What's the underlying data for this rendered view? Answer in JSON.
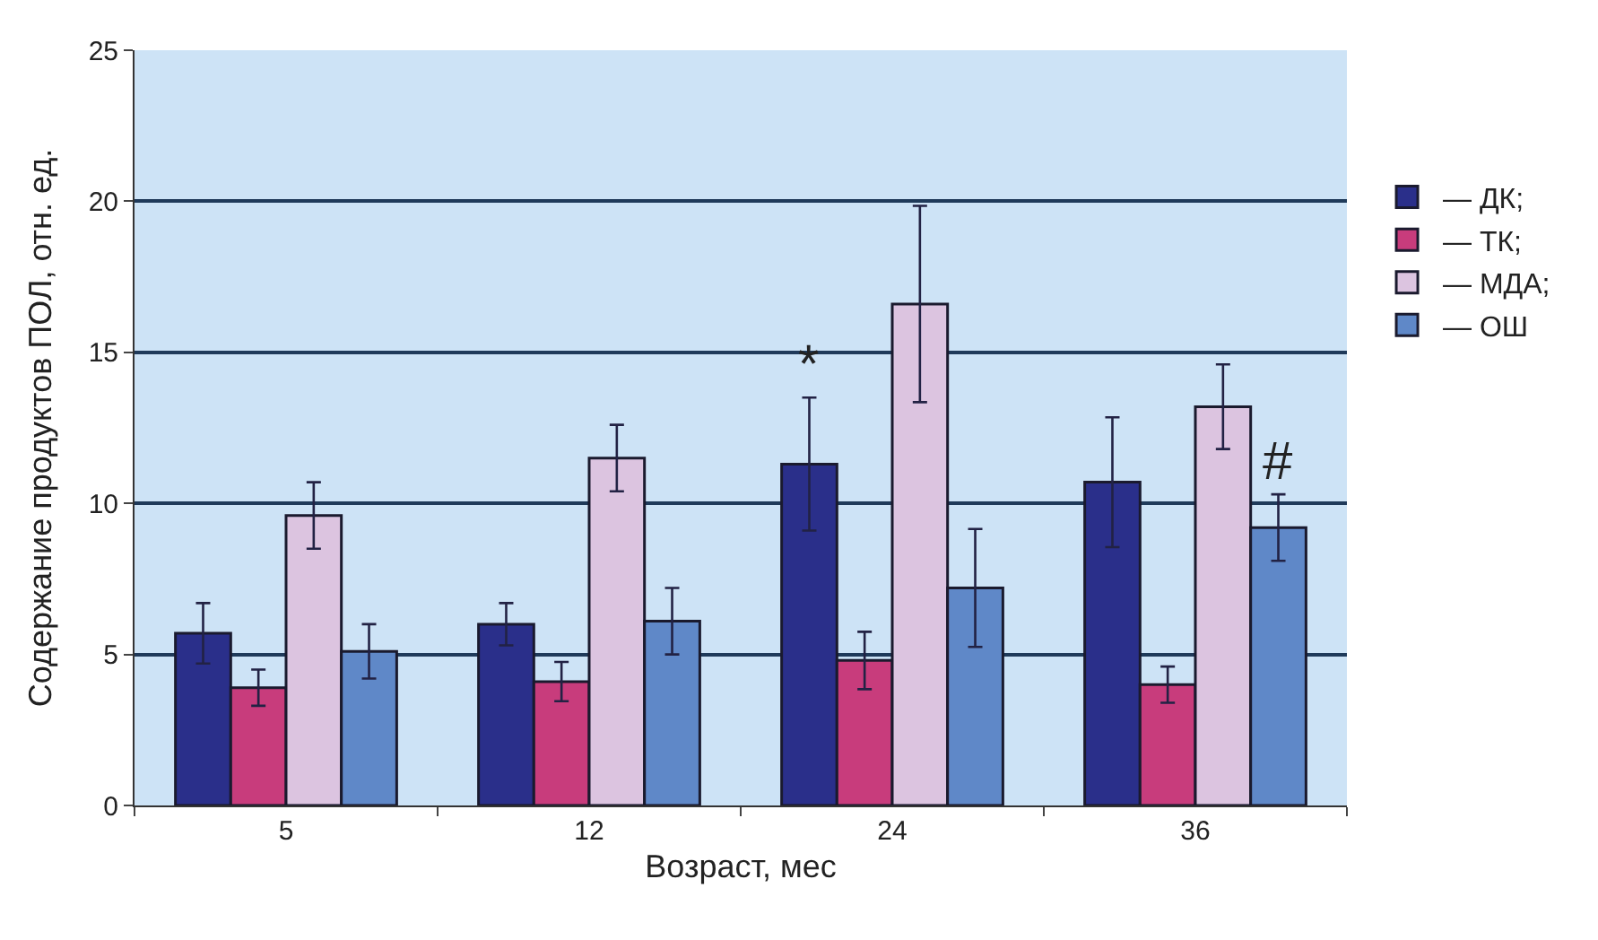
{
  "chart_data": {
    "type": "bar",
    "xlabel": "Возраст, мес",
    "ylabel": "Содержание продуктов ПОЛ, отн. ед.",
    "categories": [
      "5",
      "12",
      "24",
      "36"
    ],
    "series": [
      {
        "name": "— ДК;",
        "color": "#2a2f8a",
        "values": [
          5.7,
          6.0,
          11.3,
          10.7
        ],
        "errors": [
          1.0,
          0.7,
          2.2,
          2.15
        ]
      },
      {
        "name": "— ТК;",
        "color": "#c83c7c",
        "values": [
          3.9,
          4.1,
          4.8,
          4.0
        ],
        "errors": [
          0.6,
          0.65,
          0.95,
          0.6
        ]
      },
      {
        "name": "— МДА;",
        "color": "#dcc4e0",
        "values": [
          9.6,
          11.5,
          16.6,
          13.2
        ],
        "errors": [
          1.1,
          1.1,
          3.25,
          1.4
        ]
      },
      {
        "name": "— ОШ",
        "color": "#5f88c8",
        "values": [
          5.1,
          6.1,
          7.2,
          9.2
        ],
        "errors": [
          0.9,
          1.1,
          1.95,
          1.1
        ]
      }
    ],
    "ylim": [
      0,
      25
    ],
    "yticks": [
      0,
      5,
      10,
      15,
      20,
      25
    ],
    "grid": "y",
    "legend": "right",
    "annotations": [
      {
        "text": "*",
        "x": "24",
        "y": 13.5
      },
      {
        "text": "#",
        "x": "36",
        "y": 10.3
      }
    ]
  }
}
